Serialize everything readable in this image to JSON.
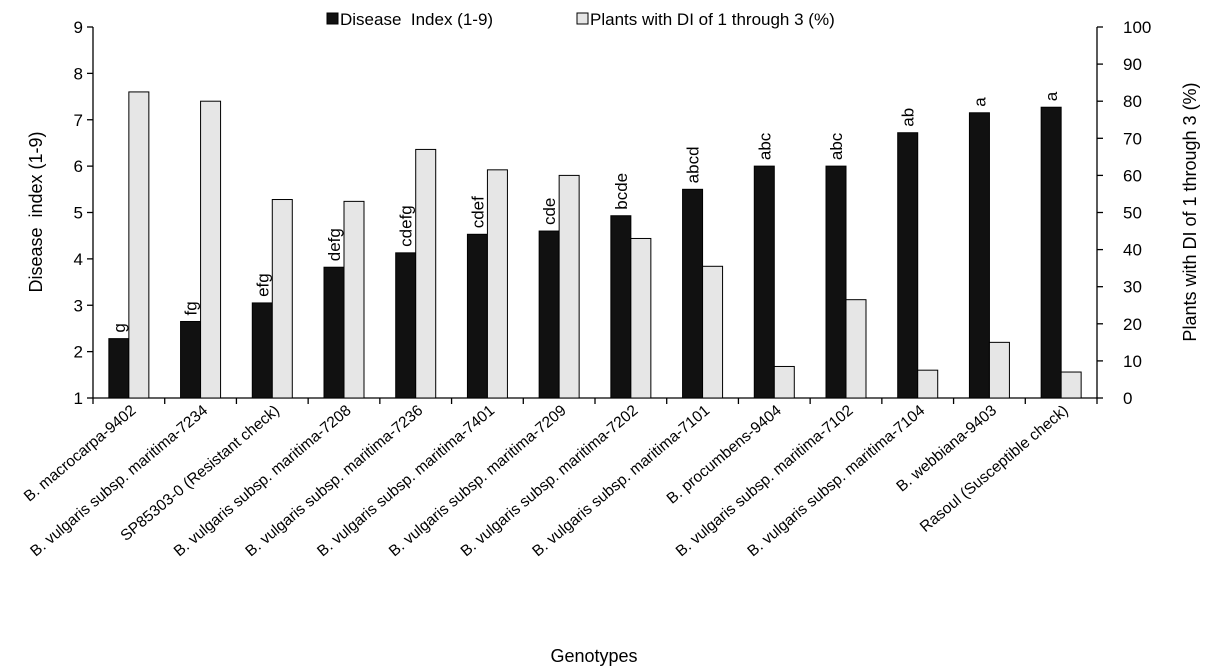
{
  "chart_data": {
    "type": "bar",
    "title": "",
    "xlabel": "Genotypes",
    "ylabel": "Disease  index (1-9)",
    "y2label": "Plants with DI of 1 through 3 (%)",
    "ylim": [
      1,
      9
    ],
    "y2lim": [
      0,
      100
    ],
    "yticks": [
      "1",
      "2",
      "3",
      "4",
      "5",
      "6",
      "7",
      "8",
      "9"
    ],
    "y2ticks": [
      "0",
      "10",
      "20",
      "30",
      "40",
      "50",
      "60",
      "70",
      "80",
      "90",
      "100"
    ],
    "grid": false,
    "legend_position": "top-center",
    "categories": [
      "B. macrocarpa-9402",
      "B. vulgaris subsp. maritima-7234",
      "SP85303-0 (Resistant check)",
      "B. vulgaris subsp. maritima-7208",
      "B. vulgaris subsp. maritima-7236",
      "B. vulgaris subsp. maritima-7401",
      "B. vulgaris subsp. maritima-7209",
      "B. vulgaris subsp. maritima-7202",
      "B. vulgaris subsp. maritima-7101",
      "B. procumbens-9404",
      "B. vulgaris subsp. maritima-7102",
      "B. vulgaris subsp. maritima-7104",
      "B. webbiana-9403",
      "Rasoul (Susceptible check)"
    ],
    "series": [
      {
        "name": "Disease  Index (1-9)",
        "axis": "left",
        "color": "#111111",
        "values": [
          2.28,
          2.65,
          3.05,
          3.82,
          4.13,
          4.53,
          4.6,
          4.93,
          5.5,
          6.0,
          6.0,
          6.72,
          7.15,
          7.27
        ]
      },
      {
        "name": "Plants with DI of 1 through 3 (%)",
        "axis": "right",
        "color": "#e6e6e6",
        "values": [
          82.5,
          80.0,
          53.5,
          53.0,
          67.0,
          61.5,
          60.0,
          43.0,
          35.5,
          8.5,
          26.5,
          7.5,
          15.0,
          7.0
        ]
      }
    ],
    "significance_letters": [
      "g",
      "fg",
      "efg",
      "defg",
      "cdefg",
      "cdef",
      "cde",
      "bcde",
      "abcd",
      "abc",
      "abc",
      "ab",
      "a",
      "a"
    ]
  }
}
